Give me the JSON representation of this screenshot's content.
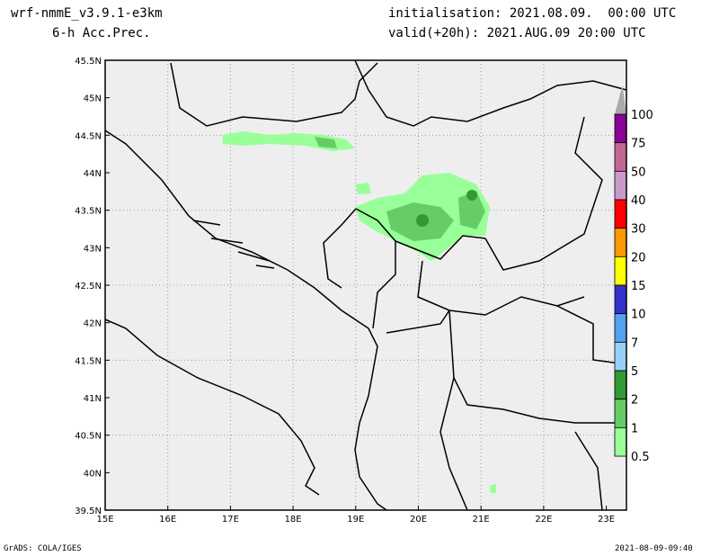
{
  "header": {
    "model": "wrf-nmmE_v3.9.1-e3km",
    "field": "6-h Acc.Prec.",
    "init": "initialisation: 2021.08.09.  00:00 UTC",
    "valid": "valid(+20h): 2021.AUG.09 20:00 UTC"
  },
  "axes": {
    "lon_ticks": [
      "15E",
      "16E",
      "17E",
      "18E",
      "19E",
      "20E",
      "21E",
      "22E",
      "23E"
    ],
    "lat_ticks": [
      "45.5N",
      "45N",
      "44.5N",
      "44N",
      "43.5N",
      "43N",
      "42.5N",
      "42N",
      "41.5N",
      "41N",
      "40.5N",
      "40N",
      "39.5N"
    ]
  },
  "colorbar": {
    "labels": [
      "100",
      "75",
      "50",
      "40",
      "30",
      "20",
      "15",
      "10",
      "7",
      "5",
      "2",
      "1",
      "0.5"
    ],
    "colors": [
      "#8b0099",
      "#c46694",
      "#cc99cc",
      "#ff0000",
      "#ff9900",
      "#ffff00",
      "#3333cc",
      "#55a0f0",
      "#99d0f8",
      "#339933",
      "#66cc66",
      "#99ff99"
    ],
    "top_color": "#aaaaaa"
  },
  "footer": {
    "left": "GrADS: COLA/IGES",
    "right": "2021-08-09-09:40"
  }
}
